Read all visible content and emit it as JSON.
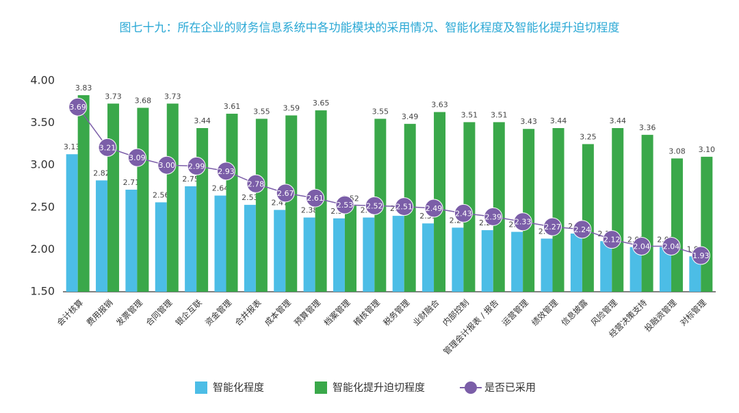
{
  "chart_data": {
    "type": "bar_line",
    "title": "图七十九：所在企业的财务信息系统中各功能模块的采用情况、智能化程度及智能化提升迫切程度",
    "categories": [
      "会计核算",
      "费用报销",
      "发票管理",
      "合同管理",
      "银企互联",
      "资金管理",
      "合并报表",
      "成本管理",
      "预算管理",
      "档案管理",
      "稽核管理",
      "税务管理",
      "业财融合",
      "内部控制",
      "管理会计报表 / 报告",
      "运营管理",
      "绩效管理",
      "信息披露",
      "风险管理",
      "经营决策支持",
      "投融资管理",
      "对标管理"
    ],
    "series": [
      {
        "name": "智能化程度",
        "kind": "bar",
        "color": "#4cbde6",
        "values": [
          3.13,
          2.82,
          2.71,
          2.56,
          2.75,
          2.64,
          2.53,
          2.47,
          2.38,
          2.37,
          2.38,
          2.4,
          2.31,
          2.26,
          2.23,
          2.21,
          2.13,
          2.19,
          2.1,
          2.03,
          2.03,
          1.92
        ],
        "value_labels": [
          "3.13",
          "2.82",
          "2.71",
          "2.56",
          "2.75",
          "2.64",
          "2.53",
          "2.47",
          "2.38",
          "2.37",
          "2.38",
          "2.40",
          "2.31",
          "2.26",
          "2.23",
          "2.21",
          "2.13",
          "2.19",
          "2.10",
          "2.03",
          "2.03",
          "1.92"
        ]
      },
      {
        "name": "智能化提升迫切程度",
        "kind": "bar",
        "color": "#3aa84a",
        "values": [
          3.83,
          3.73,
          3.68,
          3.73,
          3.44,
          3.61,
          3.55,
          3.59,
          3.65,
          2.52,
          3.55,
          3.49,
          3.63,
          3.51,
          3.51,
          3.43,
          3.44,
          3.25,
          3.44,
          3.36,
          3.08,
          3.1
        ],
        "value_labels": [
          "3.83",
          "3.73",
          "3.68",
          "3.73",
          "3.44",
          "3.61",
          "3.55",
          "3.59",
          "3.65",
          "2.52",
          "3.55",
          "3.49",
          "3.63",
          "3.51",
          "3.51",
          "3.43",
          "3.44",
          "3.25",
          "3.44",
          "3.36",
          "3.08",
          "3.10"
        ]
      },
      {
        "name": "是否已采用",
        "kind": "line",
        "color": "#7b5ea8",
        "values": [
          3.69,
          3.21,
          3.09,
          3.0,
          2.99,
          2.93,
          2.78,
          2.67,
          2.61,
          2.53,
          2.52,
          2.51,
          2.49,
          2.43,
          2.39,
          2.33,
          2.27,
          2.24,
          2.12,
          2.04,
          2.04,
          1.93
        ],
        "value_labels": [
          "3.69",
          "3.21",
          "3.09",
          "3.00",
          "2.99",
          "2.93",
          "2.78",
          "2.67",
          "2.61",
          "2.53",
          "2.52",
          "2.51",
          "2.49",
          "2.43",
          "2.39",
          "2.33",
          "2.27",
          "2.24",
          "2.12",
          "2.04",
          "2.04",
          "1.93"
        ]
      }
    ],
    "ylim": [
      1.5,
      4
    ],
    "yticks": [
      {
        "value": 1.5,
        "label": "1.50"
      },
      {
        "value": 2,
        "label": "2.00"
      },
      {
        "value": 2.5,
        "label": "2.50"
      },
      {
        "value": 3,
        "label": "3.00"
      },
      {
        "value": 3.5,
        "label": "3.50"
      },
      {
        "value": 4,
        "label": "4.00"
      }
    ]
  }
}
